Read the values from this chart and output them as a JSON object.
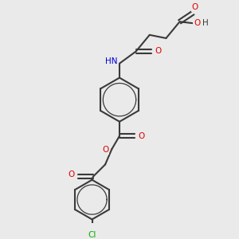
{
  "bg_color": "#eaeaea",
  "bond_color": "#3a3a3a",
  "oxygen_color": "#e00000",
  "nitrogen_color": "#0000e0",
  "chlorine_color": "#00b000",
  "lw": 1.5,
  "lw_aromatic": 0.9,
  "fontsize": 7.5,
  "figsize": [
    3.0,
    3.0
  ],
  "dpi": 100,
  "xlim": [
    0,
    10
  ],
  "ylim": [
    0,
    10
  ]
}
